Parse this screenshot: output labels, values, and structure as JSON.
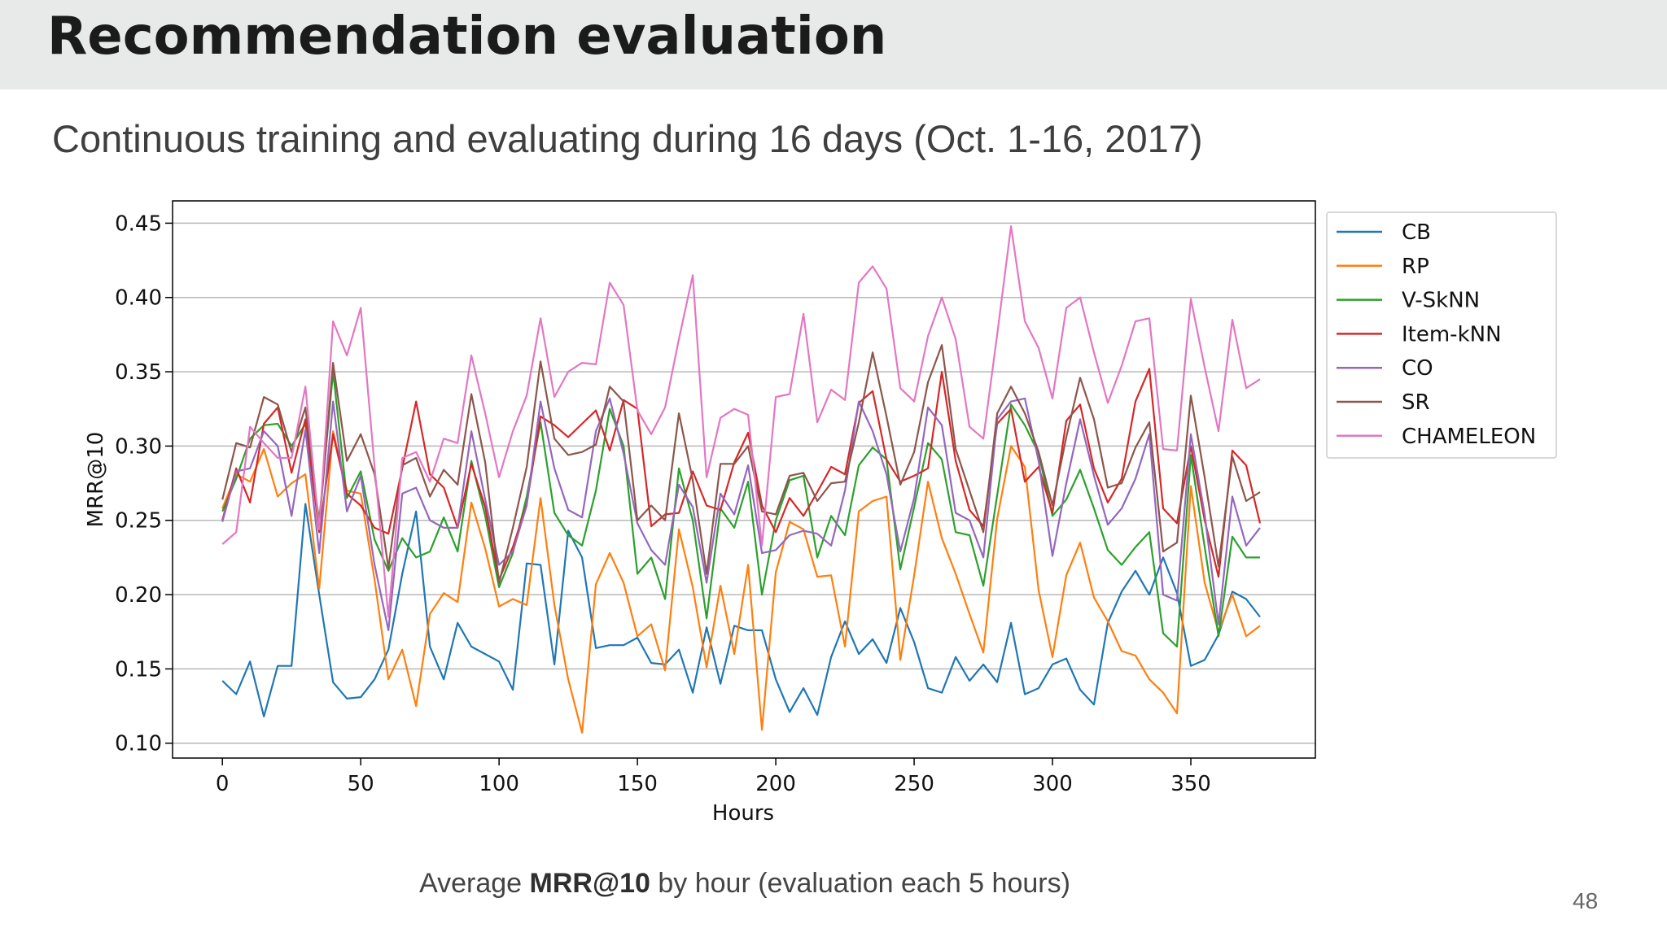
{
  "slide": {
    "title": "Recommendation evaluation",
    "subtitle": "Continuous training and evaluating during 16 days (Oct. 1-16, 2017)",
    "caption_prefix": "Average ",
    "caption_bold": "MRR@10",
    "caption_suffix": " by hour (evaluation each 5 hours)",
    "page_number": "48"
  },
  "chart_data": {
    "type": "line",
    "xlabel": "Hours",
    "ylabel": "MRR@10",
    "xlim": [
      -18,
      395
    ],
    "ylim": [
      0.09,
      0.465
    ],
    "xticks": [
      0,
      50,
      100,
      150,
      200,
      250,
      300,
      350
    ],
    "yticks": [
      0.1,
      0.15,
      0.2,
      0.25,
      0.3,
      0.35,
      0.4,
      0.45
    ],
    "grid": "horizontal",
    "legend_position": "outside-right-top",
    "x_step": 5,
    "series": [
      {
        "name": "CB",
        "color": "#1f77b4",
        "values": [
          0.142,
          0.133,
          0.155,
          0.118,
          0.152,
          0.152,
          0.261,
          0.2,
          0.141,
          0.13,
          0.131,
          0.143,
          0.163,
          0.214,
          0.256,
          0.165,
          0.143,
          0.181,
          0.165,
          0.16,
          0.155,
          0.136,
          0.221,
          0.22,
          0.153,
          0.243,
          0.225,
          0.164,
          0.166,
          0.166,
          0.171,
          0.154,
          0.153,
          0.163,
          0.134,
          0.178,
          0.14,
          0.179,
          0.176,
          0.176,
          0.143,
          0.121,
          0.137,
          0.119,
          0.158,
          0.182,
          0.16,
          0.17,
          0.154,
          0.191,
          0.168,
          0.137,
          0.134,
          0.158,
          0.142,
          0.153,
          0.141,
          0.181,
          0.133,
          0.137,
          0.153,
          0.157,
          0.136,
          0.126,
          0.181,
          0.202,
          0.216,
          0.2,
          0.225,
          0.201,
          0.152,
          0.156,
          0.173,
          0.202,
          0.197,
          0.185
        ]
      },
      {
        "name": "RP",
        "color": "#ff7f0e",
        "values": [
          0.258,
          0.281,
          0.276,
          0.298,
          0.266,
          0.275,
          0.281,
          0.204,
          0.31,
          0.27,
          0.268,
          0.21,
          0.143,
          0.163,
          0.125,
          0.187,
          0.201,
          0.195,
          0.262,
          0.231,
          0.192,
          0.197,
          0.193,
          0.265,
          0.193,
          0.143,
          0.107,
          0.207,
          0.228,
          0.208,
          0.172,
          0.18,
          0.149,
          0.244,
          0.205,
          0.151,
          0.206,
          0.16,
          0.22,
          0.109,
          0.215,
          0.249,
          0.244,
          0.212,
          0.213,
          0.165,
          0.256,
          0.263,
          0.266,
          0.156,
          0.213,
          0.276,
          0.238,
          0.214,
          0.187,
          0.161,
          0.251,
          0.3,
          0.286,
          0.203,
          0.158,
          0.213,
          0.235,
          0.198,
          0.182,
          0.162,
          0.159,
          0.143,
          0.134,
          0.12,
          0.273,
          0.208,
          0.175,
          0.2,
          0.172,
          0.179
        ]
      },
      {
        "name": "V-SkNN",
        "color": "#2ca02c",
        "values": [
          0.256,
          0.278,
          0.305,
          0.314,
          0.315,
          0.3,
          0.315,
          0.25,
          0.35,
          0.265,
          0.283,
          0.237,
          0.216,
          0.238,
          0.225,
          0.229,
          0.252,
          0.229,
          0.29,
          0.253,
          0.205,
          0.228,
          0.266,
          0.316,
          0.255,
          0.24,
          0.233,
          0.27,
          0.325,
          0.3,
          0.214,
          0.225,
          0.197,
          0.285,
          0.25,
          0.184,
          0.258,
          0.245,
          0.276,
          0.2,
          0.25,
          0.277,
          0.28,
          0.225,
          0.253,
          0.24,
          0.287,
          0.299,
          0.291,
          0.217,
          0.259,
          0.302,
          0.291,
          0.242,
          0.24,
          0.206,
          0.267,
          0.328,
          0.314,
          0.295,
          0.253,
          0.264,
          0.284,
          0.258,
          0.23,
          0.22,
          0.232,
          0.242,
          0.174,
          0.165,
          0.294,
          0.232,
          0.172,
          0.239,
          0.225,
          0.225
        ]
      },
      {
        "name": "Item-kNN",
        "color": "#d62728",
        "values": [
          0.25,
          0.285,
          0.262,
          0.315,
          0.326,
          0.282,
          0.318,
          0.242,
          0.308,
          0.268,
          0.26,
          0.245,
          0.241,
          0.285,
          0.33,
          0.281,
          0.272,
          0.245,
          0.288,
          0.259,
          0.21,
          0.232,
          0.261,
          0.32,
          0.314,
          0.306,
          0.315,
          0.324,
          0.297,
          0.331,
          0.325,
          0.246,
          0.254,
          0.255,
          0.283,
          0.26,
          0.257,
          0.289,
          0.309,
          0.26,
          0.242,
          0.265,
          0.253,
          0.269,
          0.286,
          0.281,
          0.329,
          0.337,
          0.291,
          0.276,
          0.28,
          0.285,
          0.35,
          0.29,
          0.257,
          0.246,
          0.315,
          0.325,
          0.276,
          0.286,
          0.255,
          0.317,
          0.328,
          0.285,
          0.262,
          0.278,
          0.33,
          0.352,
          0.258,
          0.248,
          0.3,
          0.25,
          0.212,
          0.297,
          0.287,
          0.248
        ]
      },
      {
        "name": "CO",
        "color": "#9467bd",
        "values": [
          0.249,
          0.283,
          0.285,
          0.31,
          0.3,
          0.253,
          0.311,
          0.228,
          0.33,
          0.256,
          0.28,
          0.22,
          0.176,
          0.268,
          0.272,
          0.25,
          0.245,
          0.245,
          0.31,
          0.264,
          0.22,
          0.229,
          0.26,
          0.33,
          0.285,
          0.257,
          0.252,
          0.31,
          0.332,
          0.295,
          0.248,
          0.23,
          0.22,
          0.274,
          0.259,
          0.208,
          0.268,
          0.254,
          0.287,
          0.228,
          0.23,
          0.24,
          0.243,
          0.241,
          0.233,
          0.27,
          0.33,
          0.31,
          0.281,
          0.229,
          0.265,
          0.326,
          0.314,
          0.255,
          0.25,
          0.225,
          0.318,
          0.33,
          0.332,
          0.29,
          0.226,
          0.275,
          0.318,
          0.28,
          0.247,
          0.258,
          0.278,
          0.308,
          0.2,
          0.196,
          0.308,
          0.254,
          0.18,
          0.266,
          0.233,
          0.245
        ]
      },
      {
        "name": "SR",
        "color": "#8c564b",
        "values": [
          0.264,
          0.302,
          0.299,
          0.333,
          0.328,
          0.296,
          0.326,
          0.246,
          0.356,
          0.29,
          0.308,
          0.281,
          0.218,
          0.287,
          0.292,
          0.266,
          0.284,
          0.274,
          0.335,
          0.289,
          0.208,
          0.245,
          0.286,
          0.357,
          0.305,
          0.294,
          0.296,
          0.301,
          0.34,
          0.33,
          0.25,
          0.26,
          0.25,
          0.322,
          0.277,
          0.214,
          0.288,
          0.288,
          0.3,
          0.256,
          0.254,
          0.28,
          0.282,
          0.263,
          0.275,
          0.276,
          0.316,
          0.363,
          0.32,
          0.274,
          0.296,
          0.343,
          0.368,
          0.298,
          0.27,
          0.242,
          0.322,
          0.34,
          0.322,
          0.296,
          0.26,
          0.306,
          0.346,
          0.318,
          0.272,
          0.275,
          0.299,
          0.316,
          0.229,
          0.235,
          0.334,
          0.279,
          0.219,
          0.293,
          0.263,
          0.269
        ]
      },
      {
        "name": "CHAMELEON",
        "color": "#e377c2",
        "values": [
          0.234,
          0.242,
          0.313,
          0.302,
          0.292,
          0.292,
          0.34,
          0.244,
          0.384,
          0.361,
          0.393,
          0.286,
          0.185,
          0.292,
          0.296,
          0.276,
          0.305,
          0.302,
          0.361,
          0.322,
          0.279,
          0.31,
          0.334,
          0.386,
          0.333,
          0.35,
          0.356,
          0.355,
          0.41,
          0.395,
          0.324,
          0.308,
          0.326,
          0.372,
          0.415,
          0.279,
          0.319,
          0.325,
          0.321,
          0.233,
          0.333,
          0.335,
          0.389,
          0.316,
          0.338,
          0.331,
          0.41,
          0.421,
          0.406,
          0.339,
          0.33,
          0.374,
          0.4,
          0.372,
          0.313,
          0.305,
          0.375,
          0.448,
          0.384,
          0.366,
          0.332,
          0.393,
          0.4,
          0.363,
          0.329,
          0.354,
          0.384,
          0.386,
          0.298,
          0.297,
          0.399,
          0.353,
          0.31,
          0.385,
          0.339,
          0.345
        ]
      }
    ]
  }
}
